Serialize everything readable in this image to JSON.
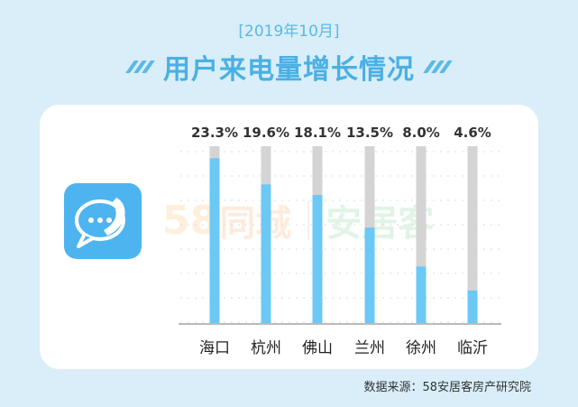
{
  "header": {
    "date_label": "[2019年10月]",
    "title": "用户来电量增长情况"
  },
  "icons": {
    "title_decoration": "slash-stripes-icon",
    "app_icon": "chat-phone-icon"
  },
  "watermark": {
    "number": "58",
    "city": "同城",
    "brand": "安居客"
  },
  "footer": {
    "source": "数据来源：58安居客房产研究院"
  },
  "colors": {
    "accent": "#4ab0e4",
    "bar_fill": "#6cc8f5",
    "bar_track": "#d4d4d4",
    "background": "#d9eef8"
  },
  "chart_data": {
    "type": "bar",
    "categories": [
      "海口",
      "杭州",
      "佛山",
      "兰州",
      "徐州",
      "临沂"
    ],
    "values": [
      23.3,
      19.6,
      18.1,
      13.5,
      8.0,
      4.6
    ],
    "value_labels": [
      "23.3%",
      "19.6%",
      "18.1%",
      "13.5%",
      "8.0%",
      "4.6%"
    ],
    "unit": "%",
    "ylim": [
      0,
      25
    ],
    "grid": false,
    "legend": "none"
  }
}
